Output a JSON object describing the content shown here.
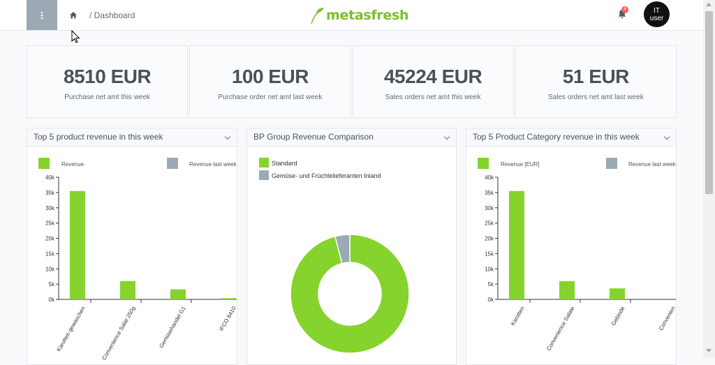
{
  "header": {
    "breadcrumb": "/ Dashboard",
    "logo_text": "metasfresh",
    "notification_count": "4",
    "avatar_line1": "IT",
    "avatar_line2": "user"
  },
  "kpis": [
    {
      "value": "8510 EUR",
      "caption": "Purchase net amt this week"
    },
    {
      "value": "100 EUR",
      "caption": "Purchase order net amt last week"
    },
    {
      "value": "45224 EUR",
      "caption": "Sales orders net amt this week"
    },
    {
      "value": "51 EUR",
      "caption": "Sales orders net amt last week"
    }
  ],
  "colors": {
    "green": "#86d32d",
    "gray": "#9aabb5"
  },
  "chart_data": [
    {
      "type": "bar",
      "title": "Top 5 product revenue in this week",
      "categories": [
        "Karotten gewaschen",
        "Convenience Salat 250g",
        "Gemüsehandel G1",
        "IFCO 6410"
      ],
      "series": [
        {
          "name": "Revenue",
          "values": [
            35500,
            6000,
            3300,
            400
          ]
        },
        {
          "name": "Revenue last week",
          "values": [
            0,
            0,
            0,
            0
          ]
        }
      ],
      "yticks": [
        "0k",
        "5k",
        "10k",
        "15k",
        "20k",
        "25k",
        "30k",
        "35k",
        "40k"
      ],
      "ylim": [
        0,
        40000
      ]
    },
    {
      "type": "pie",
      "title": "BP Group Revenue Comparison",
      "labels": [
        "Standard",
        "Gemüse- und Früchtelieferanten Inland"
      ],
      "values": [
        96,
        4
      ]
    },
    {
      "type": "bar",
      "title": "Top 5 Product Category revenue in this week",
      "categories": [
        "Karotten",
        "Convenience Salate",
        "Gebinde",
        "Convenien"
      ],
      "series": [
        {
          "name": "Revenue [EUR]",
          "values": [
            35500,
            6000,
            3600,
            0
          ]
        },
        {
          "name": "Revenue last week",
          "values": [
            0,
            0,
            0,
            0
          ]
        }
      ],
      "yticks": [
        "0k",
        "5k",
        "10k",
        "15k",
        "20k",
        "25k",
        "30k",
        "35k",
        "40k"
      ],
      "ylim": [
        0,
        40000
      ]
    }
  ]
}
